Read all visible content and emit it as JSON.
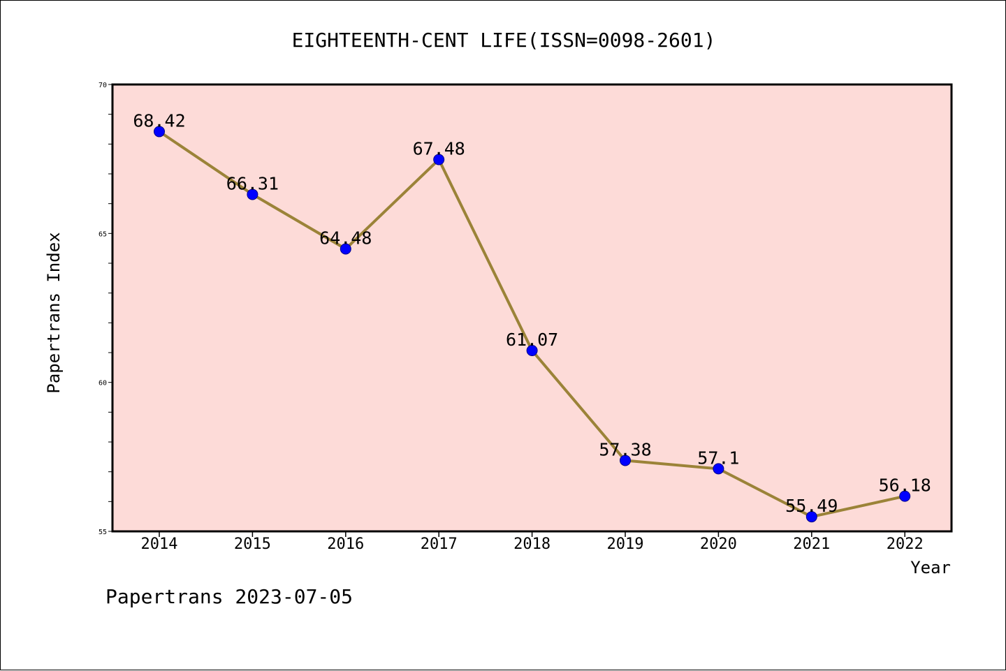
{
  "chart_data": {
    "type": "line",
    "title": "EIGHTEENTH-CENT LIFE(ISSN=0098-2601)",
    "xlabel": "Year",
    "ylabel": "Papertrans Index",
    "categories": [
      "2014",
      "2015",
      "2016",
      "2017",
      "2018",
      "2019",
      "2020",
      "2021",
      "2022"
    ],
    "series": [
      {
        "values": [
          68.42,
          66.31,
          64.48,
          67.48,
          61.07,
          57.38,
          57.1,
          55.49,
          56.18
        ],
        "labels": [
          "68.42",
          "66.31",
          "64.48",
          "67.48",
          "61.07",
          "57.38",
          "57.1",
          "55.49",
          "56.18"
        ]
      }
    ],
    "ylim": [
      55,
      70
    ],
    "yticks": [
      55,
      60,
      65,
      70
    ],
    "ytick_labels": [
      "55",
      "60",
      "65",
      "70"
    ],
    "grid": false,
    "colors": {
      "plot_background": "#fddbd8",
      "line": "#9b8338",
      "marker": "#0000ff"
    }
  },
  "footer": {
    "text": "Papertrans 2023-07-05"
  }
}
